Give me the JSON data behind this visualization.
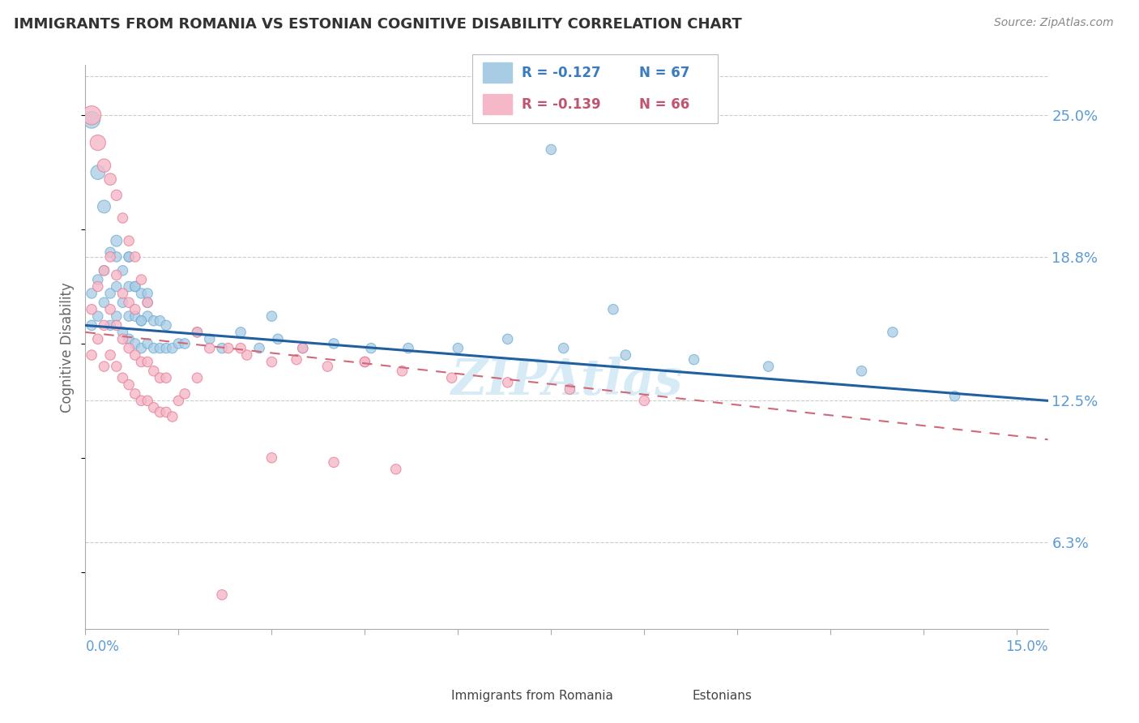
{
  "title": "IMMIGRANTS FROM ROMANIA VS ESTONIAN COGNITIVE DISABILITY CORRELATION CHART",
  "source": "Source: ZipAtlas.com",
  "ylabel": "Cognitive Disability",
  "ytick_labels": [
    "6.3%",
    "12.5%",
    "18.8%",
    "25.0%"
  ],
  "ytick_values": [
    0.063,
    0.125,
    0.188,
    0.25
  ],
  "xmin": 0.0,
  "xmax": 0.155,
  "ymin": 0.025,
  "ymax": 0.272,
  "legend_blue_r": "R = -0.127",
  "legend_blue_n": "N = 67",
  "legend_pink_r": "R = -0.139",
  "legend_pink_n": "N = 66",
  "color_blue": "#a8cce4",
  "color_blue_edge": "#6aadd5",
  "color_pink": "#f5b8c8",
  "color_pink_edge": "#e8809a",
  "color_text_axis": "#5b9bd5",
  "color_text_blue": "#3a7abf",
  "color_text_pink": "#c05570",
  "blue_line_x": [
    0.0,
    0.155
  ],
  "blue_line_y": [
    0.158,
    0.125
  ],
  "pink_line_x": [
    0.0,
    0.155
  ],
  "pink_line_y": [
    0.155,
    0.108
  ],
  "blue_scatter_x": [
    0.001,
    0.001,
    0.002,
    0.002,
    0.003,
    0.003,
    0.004,
    0.004,
    0.004,
    0.005,
    0.005,
    0.005,
    0.006,
    0.006,
    0.006,
    0.007,
    0.007,
    0.007,
    0.007,
    0.008,
    0.008,
    0.008,
    0.009,
    0.009,
    0.009,
    0.01,
    0.01,
    0.01,
    0.011,
    0.011,
    0.012,
    0.012,
    0.013,
    0.013,
    0.014,
    0.015,
    0.016,
    0.018,
    0.02,
    0.022,
    0.025,
    0.028,
    0.031,
    0.035,
    0.04,
    0.046,
    0.052,
    0.06,
    0.068,
    0.077,
    0.087,
    0.098,
    0.11,
    0.125,
    0.14,
    0.001,
    0.002,
    0.003,
    0.005,
    0.007,
    0.008,
    0.009,
    0.01,
    0.03,
    0.075,
    0.13,
    0.085
  ],
  "blue_scatter_y": [
    0.158,
    0.172,
    0.162,
    0.178,
    0.168,
    0.182,
    0.158,
    0.172,
    0.19,
    0.162,
    0.175,
    0.188,
    0.155,
    0.168,
    0.182,
    0.152,
    0.162,
    0.175,
    0.188,
    0.15,
    0.162,
    0.175,
    0.148,
    0.16,
    0.172,
    0.15,
    0.162,
    0.172,
    0.148,
    0.16,
    0.148,
    0.16,
    0.148,
    0.158,
    0.148,
    0.15,
    0.15,
    0.155,
    0.152,
    0.148,
    0.155,
    0.148,
    0.152,
    0.148,
    0.15,
    0.148,
    0.148,
    0.148,
    0.152,
    0.148,
    0.145,
    0.143,
    0.14,
    0.138,
    0.127,
    0.248,
    0.225,
    0.21,
    0.195,
    0.188,
    0.175,
    0.16,
    0.168,
    0.162,
    0.235,
    0.155,
    0.165
  ],
  "blue_scatter_size": [
    80,
    80,
    80,
    80,
    80,
    80,
    80,
    80,
    80,
    80,
    80,
    80,
    80,
    80,
    80,
    80,
    80,
    80,
    80,
    80,
    80,
    80,
    80,
    80,
    80,
    80,
    80,
    80,
    80,
    80,
    80,
    80,
    80,
    80,
    80,
    80,
    80,
    80,
    80,
    80,
    80,
    80,
    80,
    80,
    80,
    80,
    80,
    80,
    80,
    80,
    80,
    80,
    80,
    80,
    80,
    220,
    160,
    130,
    100,
    80,
    80,
    80,
    80,
    80,
    80,
    80,
    80
  ],
  "pink_scatter_x": [
    0.001,
    0.001,
    0.002,
    0.002,
    0.003,
    0.003,
    0.003,
    0.004,
    0.004,
    0.004,
    0.005,
    0.005,
    0.005,
    0.006,
    0.006,
    0.006,
    0.007,
    0.007,
    0.007,
    0.008,
    0.008,
    0.008,
    0.009,
    0.009,
    0.01,
    0.01,
    0.011,
    0.011,
    0.012,
    0.012,
    0.013,
    0.013,
    0.014,
    0.015,
    0.016,
    0.018,
    0.02,
    0.023,
    0.026,
    0.03,
    0.034,
    0.039,
    0.045,
    0.051,
    0.059,
    0.068,
    0.078,
    0.09,
    0.001,
    0.002,
    0.003,
    0.004,
    0.005,
    0.006,
    0.007,
    0.008,
    0.009,
    0.01,
    0.018,
    0.025,
    0.035,
    0.045,
    0.022,
    0.03,
    0.04,
    0.05
  ],
  "pink_scatter_y": [
    0.145,
    0.165,
    0.152,
    0.175,
    0.14,
    0.158,
    0.182,
    0.145,
    0.165,
    0.188,
    0.14,
    0.158,
    0.18,
    0.135,
    0.152,
    0.172,
    0.132,
    0.148,
    0.168,
    0.128,
    0.145,
    0.165,
    0.125,
    0.142,
    0.125,
    0.142,
    0.122,
    0.138,
    0.12,
    0.135,
    0.12,
    0.135,
    0.118,
    0.125,
    0.128,
    0.135,
    0.148,
    0.148,
    0.145,
    0.142,
    0.143,
    0.14,
    0.142,
    0.138,
    0.135,
    0.133,
    0.13,
    0.125,
    0.25,
    0.238,
    0.228,
    0.222,
    0.215,
    0.205,
    0.195,
    0.188,
    0.178,
    0.168,
    0.155,
    0.148,
    0.148,
    0.142,
    0.04,
    0.1,
    0.098,
    0.095
  ],
  "pink_scatter_size": [
    80,
    80,
    80,
    80,
    80,
    80,
    80,
    80,
    80,
    80,
    80,
    80,
    80,
    80,
    80,
    80,
    80,
    80,
    80,
    80,
    80,
    80,
    80,
    80,
    80,
    80,
    80,
    80,
    80,
    80,
    80,
    80,
    80,
    80,
    80,
    80,
    80,
    80,
    80,
    80,
    80,
    80,
    80,
    80,
    80,
    80,
    80,
    80,
    280,
    190,
    140,
    110,
    90,
    80,
    80,
    80,
    80,
    80,
    80,
    80,
    80,
    80,
    80,
    80,
    80,
    80
  ]
}
